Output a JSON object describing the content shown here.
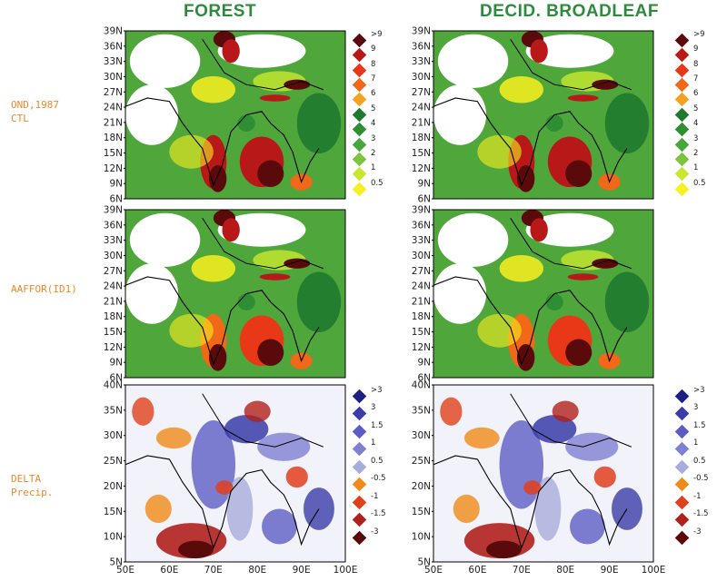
{
  "columns": [
    "FOREST",
    "DECID. BROADLEAF"
  ],
  "rows": [
    {
      "label": "OND,1987\nCTL"
    },
    {
      "label": "AAFFOR(ID1)"
    },
    {
      "label": "DELTA\nPrecip."
    }
  ],
  "axes": {
    "lat_top": [
      "39N",
      "36N",
      "33N",
      "30N",
      "27N",
      "24N",
      "21N",
      "18N",
      "15N",
      "12N",
      "9N",
      "6N"
    ],
    "lat_bottom": [
      "40N",
      "35N",
      "30N",
      "25N",
      "20N",
      "15N",
      "10N",
      "5N"
    ],
    "lon": [
      "50E",
      "60E",
      "70E",
      "80E",
      "90E",
      "100E"
    ]
  },
  "legend_precip": {
    "labels": [
      ">9",
      "9",
      "8",
      "7",
      "6",
      "5",
      "4",
      "3",
      "2",
      "1",
      "0.5"
    ],
    "colors": [
      "#5a0a0a",
      "#b81818",
      "#e83818",
      "#f06818",
      "#f8a020",
      "#1e7a30",
      "#2e8e34",
      "#46a83c",
      "#7cc440",
      "#c8e830",
      "#f8f020"
    ]
  },
  "legend_delta": {
    "labels": [
      ">3",
      "3",
      "1.5",
      "1",
      "0.5",
      "-0.5",
      "-1",
      "-1.5",
      "-3"
    ],
    "colors": [
      "#1c2080",
      "#3a3ca8",
      "#5c5cc4",
      "#7e80d2",
      "#a8acdc",
      "#f08a18",
      "#e0401c",
      "#b0201c",
      "#5a0a0a"
    ]
  }
}
